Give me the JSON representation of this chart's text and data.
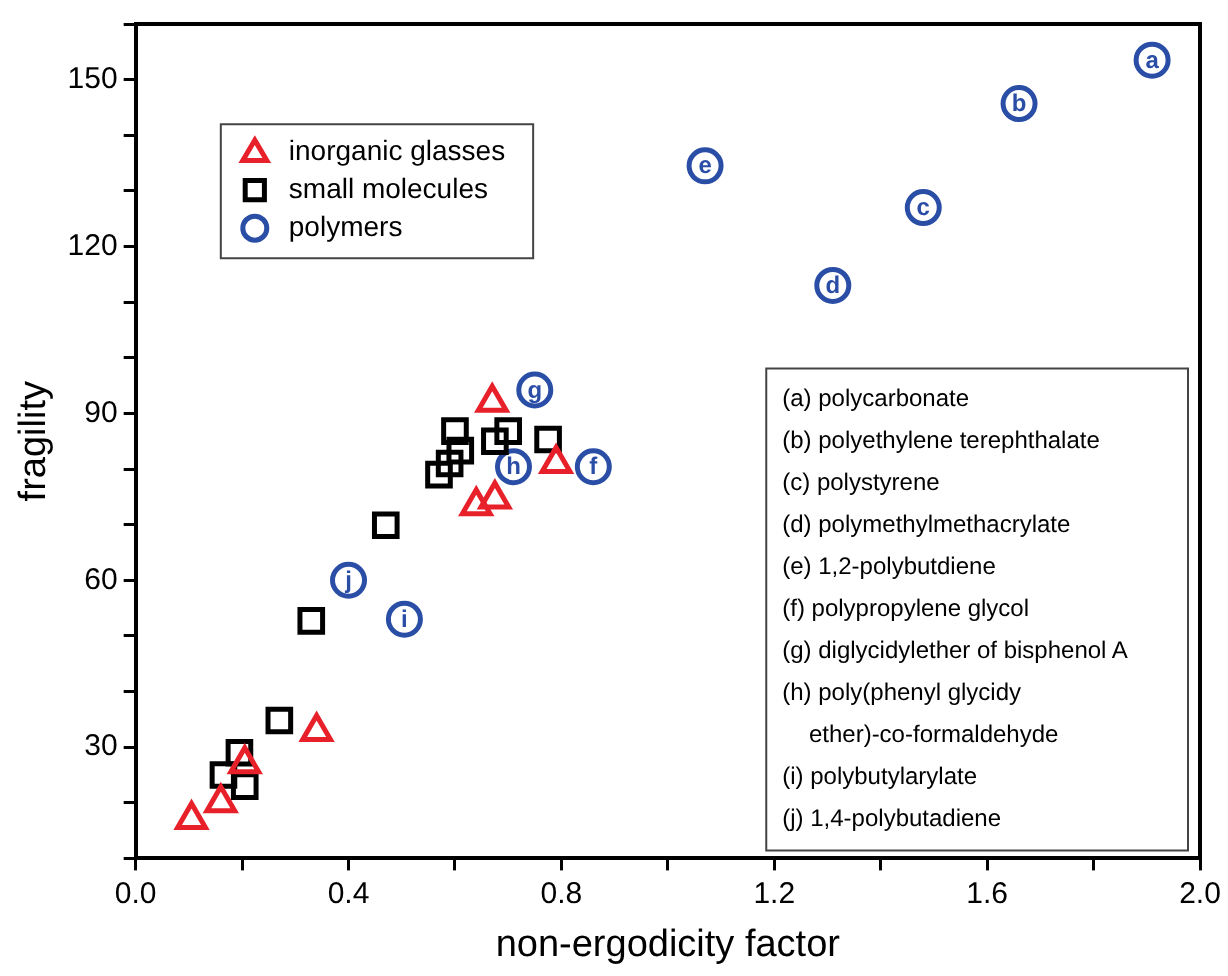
{
  "chart_data": {
    "type": "scatter",
    "xlabel": "non-ergodicity factor",
    "ylabel": "fragility",
    "xlim": [
      0,
      2.0
    ],
    "ylim": [
      10,
      160
    ],
    "xticks": [
      {
        "value": 0,
        "label": "0.0"
      },
      {
        "value": 0.2,
        "label": null
      },
      0.4,
      {
        "value": 0.6,
        "label": null
      },
      0.8,
      {
        "value": 1.0,
        "label": null
      },
      1.2,
      {
        "value": 1.4,
        "label": null
      },
      1.6,
      {
        "value": 1.8,
        "label": null
      },
      {
        "value": 2,
        "label": "2.0"
      }
    ],
    "yticks": [
      {
        "value": 10,
        "label": null
      },
      {
        "value": 20,
        "label": null
      },
      30,
      {
        "value": 40,
        "label": null
      },
      {
        "value": 50,
        "label": null
      },
      60,
      {
        "value": 70,
        "label": null
      },
      {
        "value": 80,
        "label": null
      },
      90,
      {
        "value": 100,
        "label": null
      },
      {
        "value": 110,
        "label": null
      },
      120,
      {
        "value": 130,
        "label": null
      },
      {
        "value": 140,
        "label": null
      },
      150,
      {
        "value": 160,
        "label": null
      }
    ],
    "grid": false,
    "legend": "top left",
    "series": [
      {
        "name": "inorganic glasses",
        "color": "#e8202a",
        "marker": "triangle",
        "x": [
          0.105,
          0.16,
          0.205,
          0.34,
          0.64,
          0.675,
          0.67,
          0.79
        ],
        "values": [
          17,
          20,
          27,
          32.8,
          73.4,
          74.6,
          92,
          81
        ]
      },
      {
        "name": "small molecules",
        "color": "#000000",
        "marker": "square",
        "x": [
          0.165,
          0.205,
          0.195,
          0.27,
          0.33,
          0.47,
          0.57,
          0.59,
          0.61,
          0.6,
          0.675,
          0.7,
          0.775
        ],
        "values": [
          25,
          23,
          29,
          34.8,
          52.7,
          69.9,
          79,
          81,
          83.3,
          86.8,
          85,
          86.8,
          85.3
        ]
      },
      {
        "name": "polymers",
        "color": "#2a4ea6",
        "marker": "circle",
        "x": [
          1.91,
          1.66,
          1.48,
          1.31,
          1.07,
          0.86,
          0.75,
          0.71,
          0.505,
          0.4
        ],
        "values": [
          153.5,
          145.7,
          127,
          113,
          134.5,
          80.4,
          94.2,
          80.4,
          53,
          60
        ]
      }
    ],
    "annotations": [
      {
        "text": "a",
        "x": 1.91,
        "y": 153.5
      },
      {
        "text": "b",
        "x": 1.66,
        "y": 145.7
      },
      {
        "text": "c",
        "x": 1.48,
        "y": 127
      },
      {
        "text": "d",
        "x": 1.31,
        "y": 113
      },
      {
        "text": "e",
        "x": 1.07,
        "y": 134.5
      },
      {
        "text": "f",
        "x": 0.86,
        "y": 80.4
      },
      {
        "text": "g",
        "x": 0.75,
        "y": 94.2
      },
      {
        "text": "h",
        "x": 0.71,
        "y": 80.4
      },
      {
        "text": "i",
        "x": 0.505,
        "y": 53
      },
      {
        "text": "j",
        "x": 0.4,
        "y": 60
      },
      "(a) polycarbonate",
      "(b) polyethylene terephthalate",
      "(c) polystyrene",
      "(d) polymethylmethacrylate",
      "(e) 1,2-polybutdiene",
      "(f) polypropylene glycol",
      "(g) diglycidylether of bisphenol A",
      "(h) poly(phenyl glycidy ether)-co-formaldehyde",
      "(i) polybutylarylate",
      "(j) 1,4-polybutadiene"
    ]
  }
}
